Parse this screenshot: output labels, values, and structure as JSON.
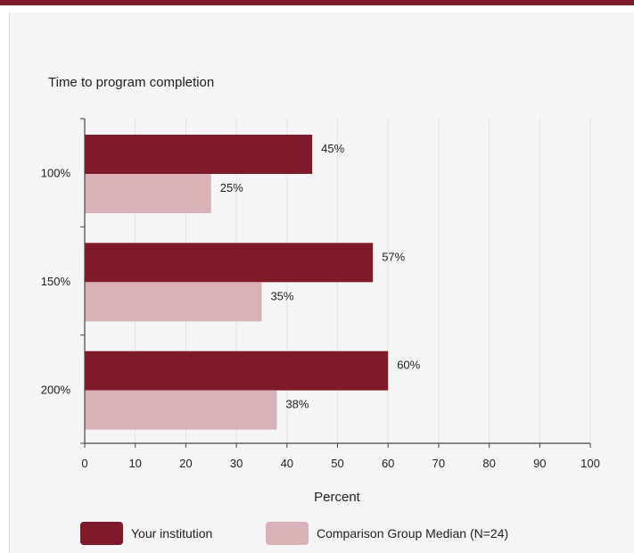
{
  "chart_data": {
    "type": "bar",
    "orientation": "horizontal",
    "title": "Time to program completion",
    "xlabel": "Percent",
    "ylabel": "",
    "categories": [
      "100%",
      "150%",
      "200%"
    ],
    "series": [
      {
        "name": "Your institution",
        "values": [
          45,
          57,
          60
        ],
        "labels": [
          "45%",
          "57%",
          "60%"
        ],
        "color": "#7f1a2b"
      },
      {
        "name": "Comparison Group Median (N=24)",
        "values": [
          25,
          35,
          38
        ],
        "labels": [
          "25%",
          "35%",
          "38%"
        ],
        "color": "#d9b2b8"
      }
    ],
    "xlim": [
      0,
      100
    ],
    "xticks": [
      "0",
      "10",
      "20",
      "30",
      "40",
      "50",
      "60",
      "70",
      "80",
      "90",
      "100"
    ],
    "grid": true,
    "legend_position": "bottom"
  },
  "colors": {
    "accent": "#7f1a2b",
    "comparison": "#d9b2b8",
    "plot_background": "#f5f5f5"
  }
}
